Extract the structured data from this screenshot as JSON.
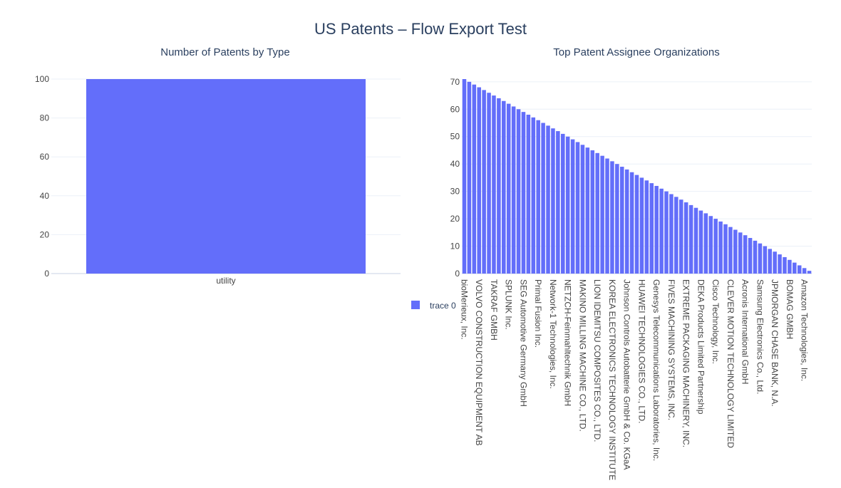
{
  "page": {
    "title": "US Patents – Flow Export Test"
  },
  "colors": {
    "bar": "#636efa",
    "grid": "#ebf0f8",
    "zeroline": "#e4e8f2",
    "text": "#2a3f5f",
    "tick": "#444444"
  },
  "legend": {
    "label": "trace 0",
    "placement": "right-middle"
  },
  "chart_data": [
    {
      "type": "bar",
      "title": "Number of Patents by Type",
      "xlabel": "",
      "ylabel": "",
      "categories": [
        "utility"
      ],
      "values": [
        100
      ],
      "ylim": [
        0,
        100
      ],
      "yticks": [
        0,
        20,
        40,
        60,
        80,
        100
      ],
      "grid": true
    },
    {
      "type": "bar",
      "title": "Top Patent Assignee Organizations",
      "xlabel": "",
      "ylabel": "",
      "values": [
        71,
        70,
        69,
        68,
        67,
        66,
        65,
        64,
        63,
        62,
        61,
        60,
        59,
        58,
        57,
        56,
        55,
        54,
        53,
        52,
        51,
        50,
        49,
        48,
        47,
        46,
        45,
        44,
        43,
        42,
        41,
        40,
        39,
        38,
        37,
        36,
        35,
        34,
        33,
        32,
        31,
        30,
        29,
        28,
        27,
        26,
        25,
        24,
        23,
        22,
        21,
        20,
        19,
        18,
        17,
        16,
        15,
        14,
        13,
        12,
        11,
        10,
        9,
        8,
        7,
        6,
        5,
        4,
        3,
        2,
        1
      ],
      "tick_labels": [
        "bioMerieux, Inc.",
        "VOLVO CONSTRUCTION EQUIPMENT AB",
        "TAKRAF GMBH",
        "SPLUNK Inc.",
        "SEG Automotive Germany GmbH",
        "Primal Fusion Inc.",
        "Network-1 Technologies, Inc.",
        "NETZCH-Feinmahltechnik GmbH",
        "MAKINO MILLING MACHINE CO., LTD.",
        "LION IDEMITSU COMPOSITES CO., LTD.",
        "KOREA ELECTRONICS TECHNOLOGY INSTITUTE",
        "Johnson Controls Autobatterie GmbH & Co. KGaA",
        "HUAWEI TECHNOLOGIES CO., LTD.",
        "Genesys Telecommunications Laboratories, Inc.",
        "FIVES MACHINING SYSTEMS, INC.",
        "EXTREME PACKAGING MACHINERY, INC.",
        "DEKA Products Limited Partnership",
        "Cisco Technology, Inc.",
        "CLEVER MOTION TECHNOLOGY LIMITED",
        "Acronis International GmbH",
        "Samsung Electronics Co., Ltd.",
        "JPMORGAN CHASE BANK, N.A.",
        "BOMAG GMBH",
        "Amazon Technologies, Inc."
      ],
      "tick_every": 3,
      "ylim": [
        0,
        71
      ],
      "yticks": [
        0,
        10,
        20,
        30,
        40,
        50,
        60,
        70
      ],
      "grid": true
    }
  ]
}
